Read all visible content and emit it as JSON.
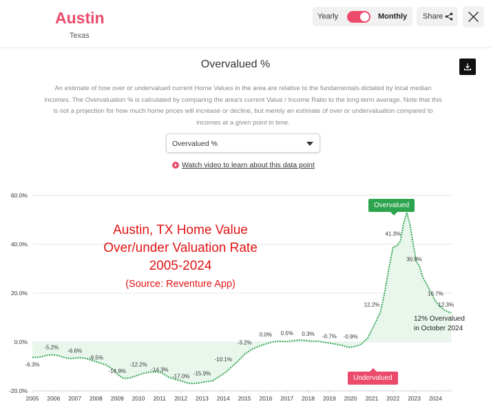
{
  "header": {
    "city": "Austin",
    "state": "Texas",
    "toggle": {
      "left_label": "Yearly",
      "right_label": "Monthly",
      "selected": "Monthly"
    },
    "share_label": "Share",
    "accent_color": "#ec4a6b"
  },
  "section": {
    "title": "Overvalued %",
    "description": "An estimate of how over or undervalued current Home Values in the area are relative to the fundamentals dictated by local median incomes. The Overvaluation % is calculated by comparing the area's current Value / Income Ratio to the long-term average. Note that this is not a projection for how much home prices will increase or decline, but merely an estimate of over or undervaluation compared to incomes at a given point in time.",
    "dropdown_value": "Overvalued %",
    "video_link": "Watch video to learn about this data point"
  },
  "overlay": {
    "line1": "Austin, TX Home Value",
    "line2": "Over/under Valuation Rate",
    "line3": "2005-2024",
    "source": "(Source: Reventure App)",
    "note_line1": "12% Overvalued",
    "note_line2": "in October 2024"
  },
  "badges": {
    "over": "Overvalued",
    "under": "Undervalued"
  },
  "chart_data": {
    "type": "line",
    "x_ticks": [
      "2005",
      "2006",
      "2007",
      "2008",
      "2009",
      "2010",
      "2011",
      "2012",
      "2013",
      "2014",
      "2015",
      "2016",
      "2017",
      "2018",
      "2019",
      "2020",
      "2021",
      "2022",
      "2023",
      "2024"
    ],
    "y_ticks": [
      "-20.0%",
      "0.0%",
      "20.0%",
      "40.0%",
      "60.0%"
    ],
    "ylim": [
      -20,
      60
    ],
    "xlim": [
      2005,
      2024.8
    ],
    "line_color": "#2da44e",
    "area_color": "#e9f6ec",
    "series": [
      {
        "points": [
          [
            2005.0,
            -6.3
          ],
          [
            2005.3,
            -6.3
          ],
          [
            2005.6,
            -5.6
          ],
          [
            2005.9,
            -5.2
          ],
          [
            2006.2,
            -5.5
          ],
          [
            2006.5,
            -6.4
          ],
          [
            2006.8,
            -6.8
          ],
          [
            2007.0,
            -6.6
          ],
          [
            2007.3,
            -6.4
          ],
          [
            2007.6,
            -6.9
          ],
          [
            2007.9,
            -7.8
          ],
          [
            2008.2,
            -8.6
          ],
          [
            2008.5,
            -9.5
          ],
          [
            2008.8,
            -11.2
          ],
          [
            2009.0,
            -13.2
          ],
          [
            2009.3,
            -14.9
          ],
          [
            2009.6,
            -14.7
          ],
          [
            2009.9,
            -13.8
          ],
          [
            2010.2,
            -12.9
          ],
          [
            2010.5,
            -12.4
          ],
          [
            2010.8,
            -12.2
          ],
          [
            2011.1,
            -12.6
          ],
          [
            2011.4,
            -14.3
          ],
          [
            2011.7,
            -15.2
          ],
          [
            2012.0,
            -15.9
          ],
          [
            2012.3,
            -16.8
          ],
          [
            2012.6,
            -17.0
          ],
          [
            2012.9,
            -16.7
          ],
          [
            2013.2,
            -16.2
          ],
          [
            2013.5,
            -15.9
          ],
          [
            2013.8,
            -14.2
          ],
          [
            2014.1,
            -12.5
          ],
          [
            2014.4,
            -10.1
          ],
          [
            2014.7,
            -7.8
          ],
          [
            2015.0,
            -5.0
          ],
          [
            2015.3,
            -3.2
          ],
          [
            2015.6,
            -2.0
          ],
          [
            2016.0,
            -0.8
          ],
          [
            2016.3,
            0.0
          ],
          [
            2016.6,
            0.3
          ],
          [
            2017.0,
            0.2
          ],
          [
            2017.3,
            0.5
          ],
          [
            2017.6,
            0.8
          ],
          [
            2017.9,
            0.6
          ],
          [
            2018.2,
            0.3
          ],
          [
            2018.5,
            0.3
          ],
          [
            2018.8,
            -0.2
          ],
          [
            2019.2,
            -0.7
          ],
          [
            2019.6,
            -1.4
          ],
          [
            2019.9,
            -2.2
          ],
          [
            2020.2,
            -1.9
          ],
          [
            2020.5,
            -0.9
          ],
          [
            2020.8,
            1.5
          ],
          [
            2021.0,
            5.0
          ],
          [
            2021.2,
            8.5
          ],
          [
            2021.4,
            12.2
          ],
          [
            2021.6,
            20.0
          ],
          [
            2021.8,
            30.0
          ],
          [
            2022.0,
            38.8
          ],
          [
            2022.2,
            39.5
          ],
          [
            2022.35,
            41.3
          ],
          [
            2022.5,
            48.5
          ],
          [
            2022.65,
            53.0
          ],
          [
            2022.8,
            48.0
          ],
          [
            2022.95,
            40.0
          ],
          [
            2023.1,
            33.0
          ],
          [
            2023.25,
            30.9
          ],
          [
            2023.4,
            26.5
          ],
          [
            2023.6,
            23.5
          ],
          [
            2023.8,
            20.0
          ],
          [
            2024.0,
            16.7
          ],
          [
            2024.2,
            14.8
          ],
          [
            2024.4,
            13.2
          ],
          [
            2024.6,
            12.3
          ],
          [
            2024.75,
            12.0
          ]
        ]
      }
    ],
    "annotations": [
      {
        "x": 2005.0,
        "y": -6.3,
        "label": "-6.3%",
        "pos": "below"
      },
      {
        "x": 2005.9,
        "y": -5.2,
        "label": "-5.2%",
        "pos": "above"
      },
      {
        "x": 2007.0,
        "y": -6.6,
        "label": "-6.6%",
        "pos": "above"
      },
      {
        "x": 2008.0,
        "y": -9.5,
        "label": "-9.5%",
        "pos": "above"
      },
      {
        "x": 2009.0,
        "y": -14.9,
        "label": "-14.9%",
        "pos": "above"
      },
      {
        "x": 2010.0,
        "y": -12.2,
        "label": "-12.2%",
        "pos": "above"
      },
      {
        "x": 2011.0,
        "y": -14.3,
        "label": "-14.3%",
        "pos": "above"
      },
      {
        "x": 2012.0,
        "y": -17.0,
        "label": "-17.0%",
        "pos": "above"
      },
      {
        "x": 2013.0,
        "y": -15.9,
        "label": "-15.9%",
        "pos": "above"
      },
      {
        "x": 2014.0,
        "y": -10.1,
        "label": "-10.1%",
        "pos": "above"
      },
      {
        "x": 2015.0,
        "y": -3.2,
        "label": "-3.2%",
        "pos": "above"
      },
      {
        "x": 2016.0,
        "y": 0.0,
        "label": "0.0%",
        "pos": "above"
      },
      {
        "x": 2017.0,
        "y": 0.5,
        "label": "0.5%",
        "pos": "above"
      },
      {
        "x": 2018.0,
        "y": 0.3,
        "label": "0.3%",
        "pos": "above"
      },
      {
        "x": 2019.0,
        "y": -0.7,
        "label": "-0.7%",
        "pos": "above"
      },
      {
        "x": 2020.0,
        "y": -0.9,
        "label": "-0.9%",
        "pos": "above"
      },
      {
        "x": 2021.0,
        "y": 12.2,
        "label": "12.2%",
        "pos": "above"
      },
      {
        "x": 2022.0,
        "y": 41.3,
        "label": "41.3%",
        "pos": "above"
      },
      {
        "x": 2023.0,
        "y": 30.9,
        "label": "30.9%",
        "pos": "above"
      },
      {
        "x": 2024.0,
        "y": 16.7,
        "label": "16.7%",
        "pos": "above"
      },
      {
        "x": 2024.5,
        "y": 12.3,
        "label": "12.3%",
        "pos": "above"
      }
    ]
  }
}
